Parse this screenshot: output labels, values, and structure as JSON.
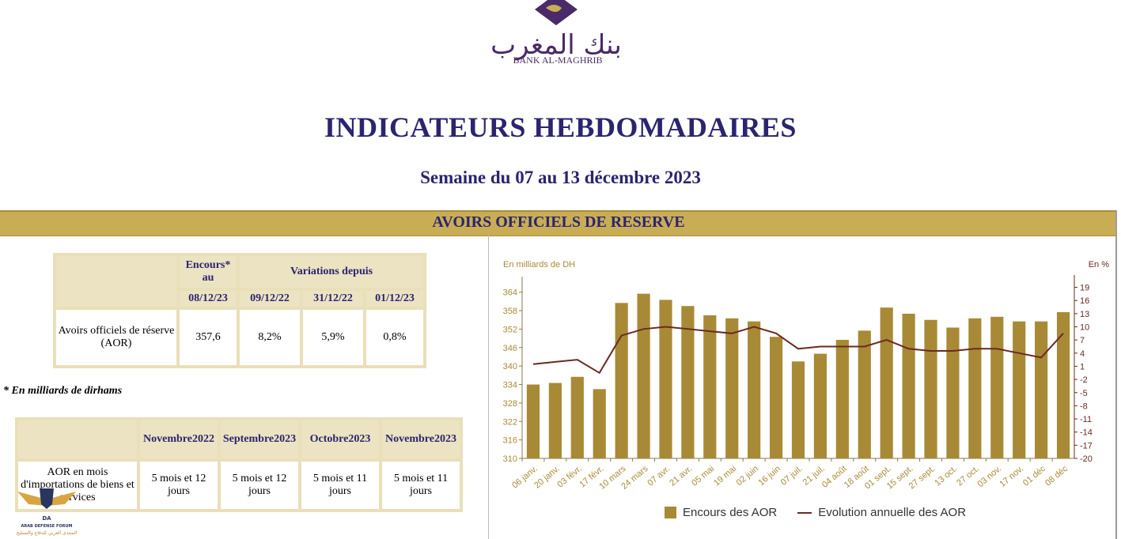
{
  "header": {
    "logo_arabic": "بنك المغرب",
    "logo_text": "BANK AL-MAGHRIB",
    "title": "INDICATEURS HEBDOMADAIRES",
    "subtitle": "Semaine du 07 au 13 décembre 2023"
  },
  "section": {
    "title": "AVOIRS OFFICIELS DE RESERVE"
  },
  "table1": {
    "col_encours": "Encours* au",
    "col_encours_date": "08/12/23",
    "col_variations": "Variations depuis",
    "dates": [
      "09/12/22",
      "31/12/22",
      "01/12/23"
    ],
    "row_label": "Avoirs officiels de réserve (AOR)",
    "encours_value": "357,6",
    "variations": [
      "8,2%",
      "5,9%",
      "0,8%"
    ]
  },
  "note": "* En milliards de dirhams",
  "table2": {
    "headers": [
      "Novembre2022",
      "Septembre2023",
      "Octobre2023",
      "Novembre2023"
    ],
    "row_label": "AOR en mois d'importations de biens et services",
    "values": [
      "5 mois et 12 jours",
      "5 mois et 12 jours",
      "5 mois et 11 jours",
      "5 mois et 11 jours"
    ]
  },
  "watermark": {
    "line1": "ARAB DEFENSE FORUM",
    "line2": "المنتدى العربي للدفاع والتسليح"
  },
  "chart_data": {
    "type": "bar",
    "ylabel_left": "En milliards de DH",
    "ylabel_right": "En %",
    "categories": [
      "06 janv.",
      "20 janv.",
      "03 févr.",
      "17 févr.",
      "10 mars",
      "24 mars",
      "07 avr.",
      "21 avr.",
      "05 mai",
      "19 mai",
      "02 juin",
      "16 juin",
      "07 juil.",
      "21 juil.",
      "04 août",
      "18 août",
      "01 sept.",
      "15 sept.",
      "27 sept.",
      "13 oct.",
      "27 oct.",
      "03 nov.",
      "17 nov.",
      "01 déc",
      "08 déc"
    ],
    "left_ticks": [
      310,
      316,
      322,
      328,
      334,
      340,
      346,
      352,
      358,
      364
    ],
    "right_ticks": [
      19,
      16,
      13,
      10,
      7,
      4,
      1,
      -2,
      -5,
      -8,
      -11,
      -14,
      -17,
      -20
    ],
    "ylim_left": [
      310,
      367
    ],
    "ylim_right": [
      -20,
      20
    ],
    "series": [
      {
        "name": "Encours des AOR",
        "type": "bar",
        "color": "#a88a36",
        "values": [
          334,
          334.5,
          336.5,
          332.5,
          360.5,
          363.5,
          361.5,
          359.5,
          356.5,
          355.5,
          354.5,
          349.5,
          341.5,
          344,
          348.5,
          351.5,
          359,
          357,
          355,
          352.5,
          355.5,
          356,
          354.5,
          354.5,
          357.5
        ]
      },
      {
        "name": "Evolution annuelle des AOR",
        "type": "line",
        "color": "#6b2a22",
        "values": [
          1.5,
          2,
          2.5,
          -0.5,
          8,
          9.5,
          10,
          9.5,
          9,
          8.5,
          10,
          8.5,
          5,
          5.5,
          5.5,
          5.5,
          7,
          5,
          4.5,
          4.5,
          5,
          5,
          4,
          3,
          8.5
        ]
      }
    ],
    "legend": "bottom"
  }
}
